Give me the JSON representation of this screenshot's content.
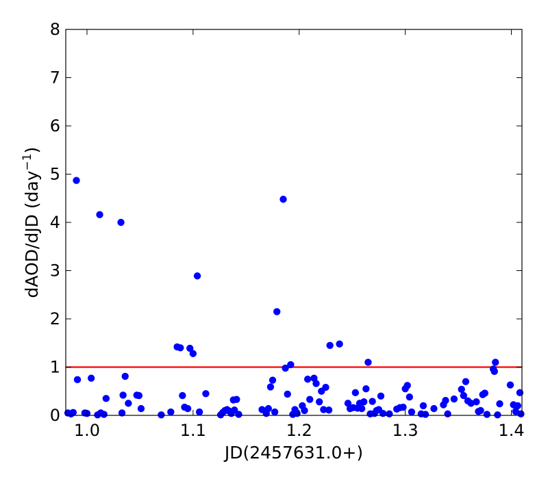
{
  "chart_data": {
    "type": "scatter",
    "xlabel": "JD(2457631.0+)",
    "ylabel_main": "dAOD/dJD (day",
    "ylabel_sup": "−1",
    "ylabel_close": ")",
    "xlim": [
      0.98,
      1.41
    ],
    "ylim": [
      0,
      8
    ],
    "xticks": [
      1.0,
      1.1,
      1.2,
      1.3,
      1.4
    ],
    "xtick_labels": [
      "1.0",
      "1.1",
      "1.2",
      "1.3",
      "1.4"
    ],
    "yticks": [
      0,
      1,
      2,
      3,
      4,
      5,
      6,
      7,
      8
    ],
    "ytick_labels": [
      "0",
      "1",
      "2",
      "3",
      "4",
      "5",
      "6",
      "7",
      "8"
    ],
    "threshold": 1.0,
    "point_color": "#0000ff",
    "threshold_color": "#ff0000",
    "points": [
      [
        0.982,
        0.05
      ],
      [
        0.985,
        0.03
      ],
      [
        0.987,
        0.06
      ],
      [
        0.99,
        4.87
      ],
      [
        0.991,
        0.74
      ],
      [
        0.998,
        0.05
      ],
      [
        1.0,
        0.04
      ],
      [
        1.004,
        0.77
      ],
      [
        1.01,
        0.01
      ],
      [
        1.012,
        4.16
      ],
      [
        1.013,
        0.05
      ],
      [
        1.016,
        0.02
      ],
      [
        1.018,
        0.35
      ],
      [
        1.032,
        4.0
      ],
      [
        1.033,
        0.05
      ],
      [
        1.034,
        0.42
      ],
      [
        1.036,
        0.81
      ],
      [
        1.039,
        0.25
      ],
      [
        1.047,
        0.42
      ],
      [
        1.049,
        0.41
      ],
      [
        1.051,
        0.14
      ],
      [
        1.07,
        0.01
      ],
      [
        1.079,
        0.07
      ],
      [
        1.085,
        1.42
      ],
      [
        1.088,
        1.4
      ],
      [
        1.09,
        0.41
      ],
      [
        1.092,
        0.17
      ],
      [
        1.095,
        0.14
      ],
      [
        1.097,
        1.39
      ],
      [
        1.1,
        1.28
      ],
      [
        1.104,
        2.89
      ],
      [
        1.106,
        0.07
      ],
      [
        1.112,
        0.45
      ],
      [
        1.126,
        0.01
      ],
      [
        1.128,
        0.06
      ],
      [
        1.13,
        0.1
      ],
      [
        1.132,
        0.12
      ],
      [
        1.134,
        0.09
      ],
      [
        1.136,
        0.04
      ],
      [
        1.138,
        0.32
      ],
      [
        1.139,
        0.11
      ],
      [
        1.141,
        0.33
      ],
      [
        1.143,
        0.02
      ],
      [
        1.165,
        0.12
      ],
      [
        1.169,
        0.04
      ],
      [
        1.171,
        0.14
      ],
      [
        1.173,
        0.59
      ],
      [
        1.175,
        0.73
      ],
      [
        1.177,
        0.07
      ],
      [
        1.179,
        2.15
      ],
      [
        1.185,
        4.48
      ],
      [
        1.187,
        0.98
      ],
      [
        1.189,
        0.44
      ],
      [
        1.192,
        1.05
      ],
      [
        1.194,
        0.02
      ],
      [
        1.196,
        0.12
      ],
      [
        1.198,
        0.04
      ],
      [
        1.203,
        0.2
      ],
      [
        1.205,
        0.1
      ],
      [
        1.208,
        0.75
      ],
      [
        1.21,
        0.33
      ],
      [
        1.214,
        0.77
      ],
      [
        1.216,
        0.66
      ],
      [
        1.219,
        0.28
      ],
      [
        1.221,
        0.5
      ],
      [
        1.223,
        0.12
      ],
      [
        1.225,
        0.58
      ],
      [
        1.228,
        0.11
      ],
      [
        1.229,
        1.45
      ],
      [
        1.238,
        1.48
      ],
      [
        1.246,
        0.25
      ],
      [
        1.248,
        0.14
      ],
      [
        1.251,
        0.16
      ],
      [
        1.253,
        0.47
      ],
      [
        1.255,
        0.15
      ],
      [
        1.257,
        0.25
      ],
      [
        1.259,
        0.14
      ],
      [
        1.261,
        0.28
      ],
      [
        1.263,
        0.55
      ],
      [
        1.265,
        1.1
      ],
      [
        1.267,
        0.03
      ],
      [
        1.269,
        0.29
      ],
      [
        1.271,
        0.04
      ],
      [
        1.273,
        0.1
      ],
      [
        1.275,
        0.12
      ],
      [
        1.277,
        0.4
      ],
      [
        1.279,
        0.04
      ],
      [
        1.285,
        0.03
      ],
      [
        1.292,
        0.13
      ],
      [
        1.295,
        0.16
      ],
      [
        1.298,
        0.17
      ],
      [
        1.3,
        0.55
      ],
      [
        1.302,
        0.62
      ],
      [
        1.304,
        0.38
      ],
      [
        1.306,
        0.07
      ],
      [
        1.315,
        0.03
      ],
      [
        1.317,
        0.2
      ],
      [
        1.319,
        0.02
      ],
      [
        1.327,
        0.14
      ],
      [
        1.336,
        0.22
      ],
      [
        1.338,
        0.31
      ],
      [
        1.34,
        0.03
      ],
      [
        1.346,
        0.34
      ],
      [
        1.353,
        0.54
      ],
      [
        1.355,
        0.41
      ],
      [
        1.357,
        0.7
      ],
      [
        1.359,
        0.3
      ],
      [
        1.362,
        0.25
      ],
      [
        1.367,
        0.28
      ],
      [
        1.369,
        0.08
      ],
      [
        1.371,
        0.1
      ],
      [
        1.373,
        0.43
      ],
      [
        1.375,
        0.46
      ],
      [
        1.377,
        0.02
      ],
      [
        1.383,
        0.96
      ],
      [
        1.384,
        0.91
      ],
      [
        1.385,
        1.1
      ],
      [
        1.387,
        0.01
      ],
      [
        1.389,
        0.24
      ],
      [
        1.399,
        0.63
      ],
      [
        1.402,
        0.22
      ],
      [
        1.404,
        0.08
      ],
      [
        1.406,
        0.2
      ],
      [
        1.408,
        0.47
      ],
      [
        1.409,
        0.03
      ]
    ]
  }
}
